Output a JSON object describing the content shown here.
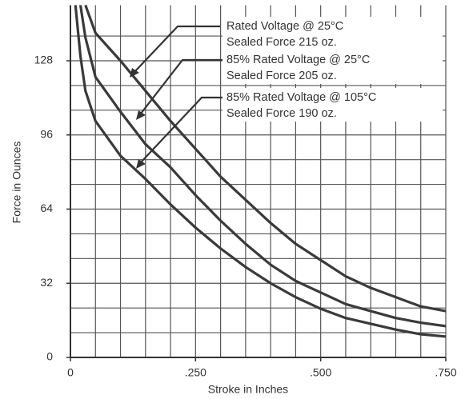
{
  "chart_data": {
    "type": "line",
    "xlabel": "Stroke in Inches",
    "ylabel": "Force in Ounces",
    "xlim": [
      0,
      0.75
    ],
    "ylim": [
      0,
      152
    ],
    "xticks": [
      0,
      {
        "value": 0.25,
        "label": ".250"
      },
      {
        "value": 0.5,
        "label": ".500"
      },
      {
        "value": 0.75,
        "label": ".750"
      }
    ],
    "yticks": [
      0,
      32,
      64,
      96,
      128
    ],
    "xgrid": [
      0,
      0.05,
      0.1,
      0.15,
      0.2,
      0.25,
      0.3,
      0.35,
      0.4,
      0.45,
      0.5,
      0.55,
      0.6,
      0.65,
      0.7,
      0.75
    ],
    "ygrid": [
      10.67,
      21.33,
      32,
      42.67,
      53.33,
      64,
      74.67,
      85.33,
      96,
      106.67,
      117.33,
      128,
      138.67
    ],
    "grid": true,
    "color": "#3a3a3a",
    "series": [
      {
        "x": [
          0.03,
          0.04,
          0.05,
          0.1,
          0.15,
          0.2,
          0.25,
          0.3,
          0.35,
          0.4,
          0.45,
          0.5,
          0.55,
          0.6,
          0.65,
          0.7,
          0.75
        ],
        "values": [
          152,
          146,
          140,
          128,
          115,
          102,
          90,
          78,
          68,
          58,
          49,
          42,
          35,
          30,
          26,
          22,
          20
        ]
      },
      {
        "x": [
          0.02,
          0.03,
          0.05,
          0.1,
          0.15,
          0.2,
          0.25,
          0.3,
          0.35,
          0.4,
          0.45,
          0.5,
          0.55,
          0.6,
          0.65,
          0.7,
          0.75
        ],
        "values": [
          152,
          138,
          121,
          106,
          92,
          82,
          70,
          59,
          49,
          40,
          33,
          28,
          23,
          20,
          17,
          15,
          13.5
        ]
      },
      {
        "x": [
          0.01,
          0.02,
          0.03,
          0.05,
          0.1,
          0.15,
          0.2,
          0.25,
          0.3,
          0.35,
          0.4,
          0.45,
          0.5,
          0.55,
          0.6,
          0.65,
          0.7,
          0.75
        ],
        "values": [
          152,
          130,
          115,
          102,
          87,
          77,
          66,
          56,
          47,
          39,
          32,
          26,
          21,
          17,
          14.5,
          12,
          10,
          9
        ]
      }
    ],
    "annotations": [
      {
        "lines": [
          "Rated Voltage @ 25°C",
          "Sealed Force 215 oz."
        ]
      },
      {
        "lines": [
          "85% Rated Voltage @ 25°C",
          "Sealed Force 205 oz."
        ]
      },
      {
        "lines": [
          "85% Rated Voltage @ 105°C",
          "Sealed Force 190 oz."
        ]
      }
    ]
  }
}
